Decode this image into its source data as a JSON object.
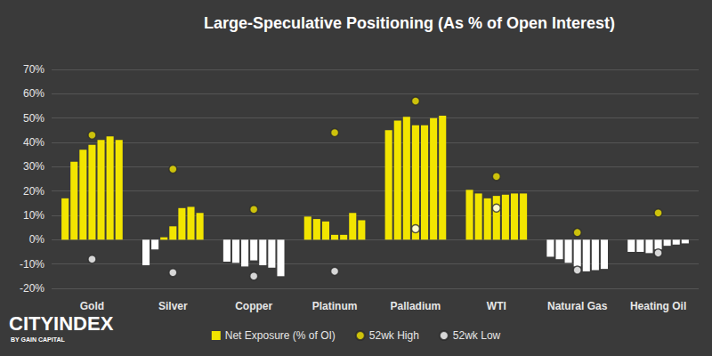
{
  "chart_data": {
    "type": "bar",
    "title": "Large-Speculative Positioning (As % of Open Interest)",
    "annotations": [
      "CITYINDEX",
      "BY GAIN CAPITAL"
    ],
    "categories": [
      null,
      null,
      null,
      null,
      "Gold",
      null,
      null,
      null,
      null,
      null,
      null,
      null,
      null,
      "Silver",
      null,
      null,
      null,
      null,
      null,
      null,
      null,
      null,
      "Copper",
      null,
      null,
      null,
      null,
      null,
      null,
      null,
      null,
      "Platinum",
      null,
      null,
      null,
      null,
      null,
      null,
      null,
      null,
      "Palladium",
      null,
      null,
      null,
      null,
      null,
      null,
      null,
      null,
      "WTI",
      null,
      null,
      null,
      null,
      null,
      null,
      null,
      null,
      "Natural Gas",
      null,
      null,
      null,
      null,
      null,
      null,
      null,
      null,
      "Heating Oil",
      null,
      null,
      null,
      null
    ],
    "series": [
      {
        "name": "Net Exposure (% of OI)",
        "type": "bar",
        "color": "#f2e500",
        "values": [
          null,
          17,
          32,
          37,
          39,
          41,
          42.5,
          41,
          null,
          null,
          -10.5,
          -4,
          1,
          5.5,
          13,
          13.5,
          11,
          null,
          null,
          -9,
          -9.5,
          -11,
          -8.5,
          -10.5,
          -11.5,
          -15,
          null,
          null,
          9.5,
          8.5,
          7.5,
          2,
          2,
          11,
          8,
          null,
          null,
          45,
          49,
          50.5,
          47,
          47,
          50,
          51,
          null,
          null,
          20.5,
          19,
          17,
          18,
          18.5,
          19,
          19,
          null,
          null,
          -7,
          -8,
          -9.5,
          -11,
          -13,
          -12.5,
          -12,
          null,
          null,
          -5,
          -5,
          -5.5,
          -4,
          -2.5,
          -2,
          -1.5,
          null
        ],
        "colors": [
          null,
          "#f2e500",
          "#f2e500",
          "#f2e500",
          "#f2e500",
          "#f2e500",
          "#f2e500",
          "#f2e500",
          null,
          null,
          "#ffffff",
          "#ffffff",
          "#f2e500",
          "#f2e500",
          "#f2e500",
          "#f2e500",
          "#f2e500",
          null,
          null,
          "#ffffff",
          "#ffffff",
          "#ffffff",
          "#ffffff",
          "#ffffff",
          "#ffffff",
          "#ffffff",
          null,
          null,
          "#f2e500",
          "#f2e500",
          "#f2e500",
          "#f2e500",
          "#f2e500",
          "#f2e500",
          "#f2e500",
          null,
          null,
          "#f2e500",
          "#f2e500",
          "#f2e500",
          "#f2e500",
          "#f2e500",
          "#f2e500",
          "#f2e500",
          null,
          null,
          "#f2e500",
          "#f2e500",
          "#f2e500",
          "#f2e500",
          "#f2e500",
          "#f2e500",
          "#f2e500",
          null,
          null,
          "#ffffff",
          "#ffffff",
          "#ffffff",
          "#ffffff",
          "#ffffff",
          "#ffffff",
          "#ffffff",
          null,
          null,
          "#ffffff",
          "#ffffff",
          "#ffffff",
          "#ffffff",
          "#ffffff",
          "#ffffff",
          "#ffffff",
          null
        ]
      },
      {
        "name": "52wk High",
        "type": "scatter",
        "color": "#f2e500",
        "marker": "circle",
        "values": [
          null,
          null,
          null,
          null,
          43,
          null,
          null,
          null,
          null,
          null,
          null,
          null,
          null,
          29,
          null,
          null,
          null,
          null,
          null,
          null,
          null,
          null,
          12.5,
          null,
          null,
          null,
          null,
          null,
          null,
          null,
          null,
          44,
          null,
          null,
          null,
          null,
          null,
          null,
          null,
          null,
          57,
          null,
          null,
          null,
          null,
          null,
          null,
          null,
          null,
          26,
          null,
          null,
          null,
          null,
          null,
          null,
          null,
          null,
          3,
          null,
          null,
          null,
          null,
          null,
          null,
          null,
          null,
          11,
          null,
          null,
          null,
          null
        ]
      },
      {
        "name": "52wk Low",
        "type": "scatter",
        "color": "#ffffff",
        "marker": "circle",
        "values": [
          null,
          null,
          null,
          null,
          -8,
          null,
          null,
          null,
          null,
          null,
          null,
          null,
          null,
          -13.5,
          null,
          null,
          null,
          null,
          null,
          null,
          null,
          null,
          -15,
          null,
          null,
          null,
          null,
          null,
          null,
          null,
          null,
          -13,
          null,
          null,
          null,
          null,
          null,
          null,
          null,
          null,
          4.5,
          null,
          null,
          null,
          null,
          null,
          null,
          null,
          null,
          13,
          null,
          null,
          null,
          null,
          null,
          null,
          null,
          null,
          -12.5,
          null,
          null,
          null,
          null,
          null,
          null,
          null,
          null,
          -5.5,
          null,
          null,
          null,
          null
        ]
      }
    ],
    "ylim": [
      -20,
      70
    ],
    "yticks": [
      {
        "value": -20,
        "label": "-20%"
      },
      {
        "value": -10,
        "label": "-10%"
      },
      {
        "value": 0,
        "label": "0%"
      },
      {
        "value": 10,
        "label": "10%"
      },
      {
        "value": 20,
        "label": "20%"
      },
      {
        "value": 30,
        "label": "30%"
      },
      {
        "value": 40,
        "label": "40%"
      },
      {
        "value": 50,
        "label": "50%"
      },
      {
        "value": 60,
        "label": "60%"
      },
      {
        "value": 70,
        "label": "70%"
      }
    ],
    "grid": true,
    "legend": "bottom"
  }
}
